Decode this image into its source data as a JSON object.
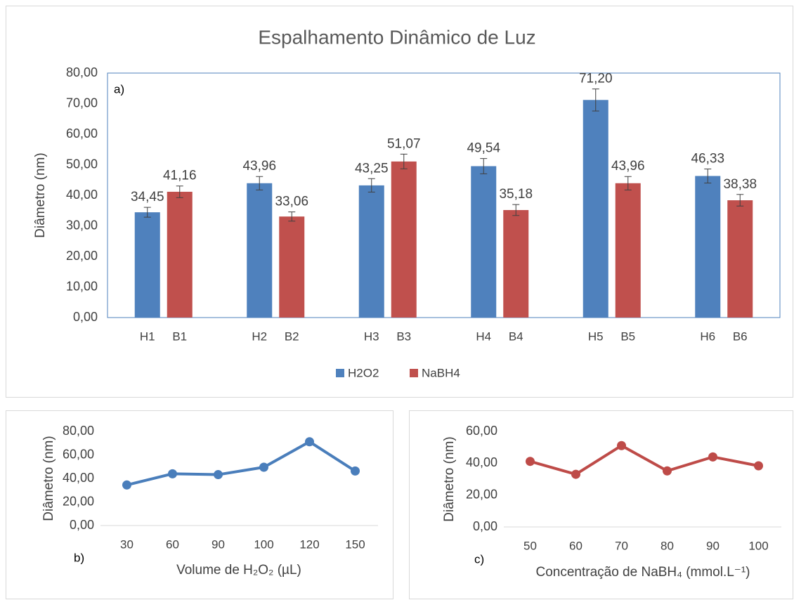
{
  "chart_data": [
    {
      "type": "bar",
      "title": "Espalhamento Dinâmico de Luz",
      "ylabel": "Diâmetro (nm)",
      "annotation": "a)",
      "ylim": [
        0,
        80
      ],
      "yticks": [
        {
          "value": 0,
          "label": "0,00"
        },
        {
          "value": 10,
          "label": "10,00"
        },
        {
          "value": 20,
          "label": "20,00"
        },
        {
          "value": 30,
          "label": "30,00"
        },
        {
          "value": 40,
          "label": "40,00"
        },
        {
          "value": 50,
          "label": "50,00"
        },
        {
          "value": 60,
          "label": "60,00"
        },
        {
          "value": 70,
          "label": "70,00"
        },
        {
          "value": 80,
          "label": "80,00"
        }
      ],
      "grid": false,
      "legend": "bottom",
      "series": [
        {
          "name": "H2O2",
          "color": "#4f81bd",
          "bar_labels": [
            "H1",
            "H2",
            "H3",
            "H4",
            "H5",
            "H6"
          ],
          "values": [
            34.45,
            43.96,
            43.25,
            49.54,
            71.2,
            46.33
          ],
          "value_labels": [
            "34,45",
            "43,96",
            "43,25",
            "49,54",
            "71,20",
            "46,33"
          ],
          "errors": [
            1.6,
            2.2,
            2.2,
            2.5,
            3.6,
            2.3
          ]
        },
        {
          "name": "NaBH4",
          "color": "#c0504d",
          "bar_labels": [
            "B1",
            "B2",
            "B3",
            "B4",
            "B5",
            "B6"
          ],
          "values": [
            41.16,
            33.06,
            51.07,
            35.18,
            43.96,
            38.38
          ],
          "value_labels": [
            "41,16",
            "33,06",
            "51,07",
            "35,18",
            "43,96",
            "38,38"
          ],
          "errors": [
            1.9,
            1.5,
            2.4,
            1.8,
            2.2,
            1.9
          ]
        }
      ]
    },
    {
      "type": "line",
      "ylabel": "Diâmetro (nm)",
      "xlabel": "Volume de H₂O₂ (µL)",
      "annotation": "b)",
      "categories": [
        "30",
        "60",
        "90",
        "100",
        "120",
        "150"
      ],
      "ylim": [
        0,
        80
      ],
      "yticks": [
        {
          "value": 0,
          "label": "0,00"
        },
        {
          "value": 20,
          "label": "20,00"
        },
        {
          "value": 40,
          "label": "40,00"
        },
        {
          "value": 60,
          "label": "60,00"
        },
        {
          "value": 80,
          "label": "80,00"
        }
      ],
      "grid": false,
      "series": [
        {
          "name": "H2O2",
          "color": "#4a7ebb",
          "values": [
            34.45,
            43.96,
            43.25,
            49.54,
            71.2,
            46.33
          ]
        }
      ]
    },
    {
      "type": "line",
      "ylabel": "Diâmetro (nm)",
      "xlabel": "Concentração de NaBH₄ (mmol.L⁻¹)",
      "annotation": "c)",
      "categories": [
        "50",
        "60",
        "70",
        "80",
        "90",
        "100"
      ],
      "ylim": [
        0,
        60
      ],
      "yticks": [
        {
          "value": 0,
          "label": "0,00"
        },
        {
          "value": 20,
          "label": "20,00"
        },
        {
          "value": 40,
          "label": "40,00"
        },
        {
          "value": 60,
          "label": "60,00"
        }
      ],
      "grid": false,
      "series": [
        {
          "name": "NaBH4",
          "color": "#be4b48",
          "values": [
            41.16,
            33.06,
            51.07,
            35.18,
            43.96,
            38.38
          ]
        }
      ]
    }
  ]
}
